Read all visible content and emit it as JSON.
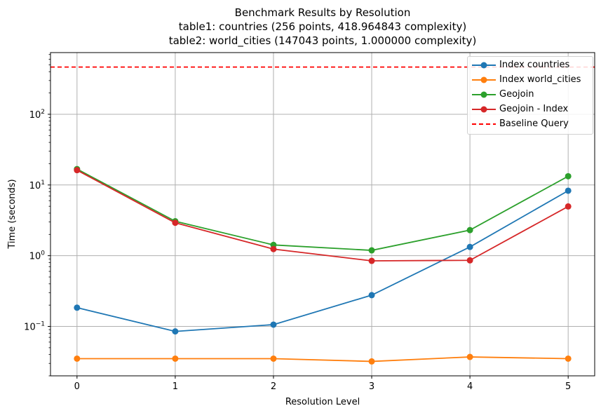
{
  "chart_data": {
    "type": "line",
    "title": "Benchmark Results by Resolution",
    "subtitle_lines": [
      "table1: countries (256 points, 418.964843 complexity)",
      "table2: world_cities (147043 points, 1.000000 complexity)"
    ],
    "xlabel": "Resolution Level",
    "ylabel": "Time (seconds)",
    "yscale": "log",
    "ylim": [
      0.02,
      745
    ],
    "xlim": [
      -0.27,
      5.27
    ],
    "x": [
      0,
      1,
      2,
      3,
      4,
      5
    ],
    "x_tick_labels": [
      "0",
      "1",
      "2",
      "3",
      "4",
      "5"
    ],
    "y_tick_labels": [
      "10^-1",
      "10^0",
      "10^1",
      "10^2"
    ],
    "grid": true,
    "legend_position": "upper right",
    "series": [
      {
        "name": "Index countries",
        "color": "#1f77b4",
        "marker": "circle",
        "linestyle": "solid",
        "values": [
          0.184,
          0.085,
          0.106,
          0.277,
          1.33,
          8.3
        ]
      },
      {
        "name": "Index world_cities",
        "color": "#ff7f0e",
        "marker": "circle",
        "linestyle": "solid",
        "values": [
          0.035,
          0.035,
          0.035,
          0.032,
          0.037,
          0.035
        ]
      },
      {
        "name": "Geojoin",
        "color": "#2ca02c",
        "marker": "circle",
        "linestyle": "solid",
        "values": [
          16.8,
          3.07,
          1.42,
          1.19,
          2.3,
          13.3
        ]
      },
      {
        "name": "Geojoin - Index",
        "color": "#d62728",
        "marker": "circle",
        "linestyle": "solid",
        "values": [
          16.2,
          2.92,
          1.24,
          0.845,
          0.86,
          4.97
        ]
      }
    ],
    "baseline": {
      "name": "Baseline Query",
      "color": "#ff0000",
      "linestyle": "dashed",
      "value": 465
    }
  }
}
